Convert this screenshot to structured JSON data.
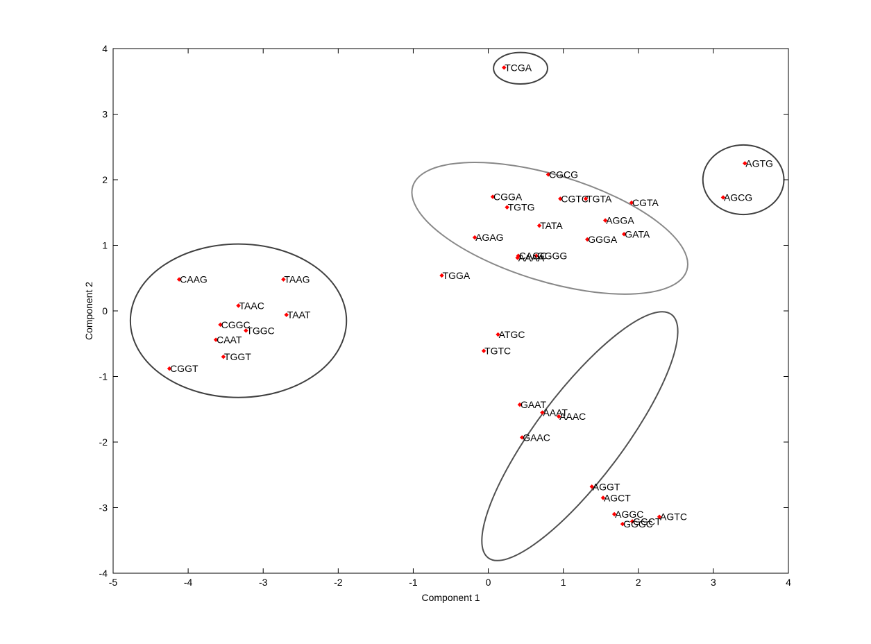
{
  "chart_data": {
    "type": "scatter",
    "title": "",
    "xlabel": "Component 1",
    "ylabel": "Component 2",
    "xlim": [
      -5,
      4
    ],
    "ylim": [
      -4,
      4
    ],
    "xticks": [
      -5,
      -4,
      -3,
      -2,
      -1,
      0,
      1,
      2,
      3,
      4
    ],
    "yticks": [
      -4,
      -3,
      -2,
      -1,
      0,
      1,
      2,
      3,
      4
    ],
    "grid": false,
    "marker_color": "#ff0000",
    "axis_color": "#000000",
    "points": [
      {
        "label": "TCGA",
        "x": 0.21,
        "y": 3.71
      },
      {
        "label": "AGTG",
        "x": 3.42,
        "y": 2.25
      },
      {
        "label": "AGCG",
        "x": 3.13,
        "y": 1.73
      },
      {
        "label": "CGCG",
        "x": 0.8,
        "y": 2.08
      },
      {
        "label": "CGGA",
        "x": 0.06,
        "y": 1.74
      },
      {
        "label": "TGTG",
        "x": 0.25,
        "y": 1.58
      },
      {
        "label": "CGTC",
        "x": 0.96,
        "y": 1.71
      },
      {
        "label": "TGTA",
        "x": 1.3,
        "y": 1.71
      },
      {
        "label": "CGTA",
        "x": 1.91,
        "y": 1.65
      },
      {
        "label": "AGGA",
        "x": 1.56,
        "y": 1.38
      },
      {
        "label": "TATA",
        "x": 0.68,
        "y": 1.3
      },
      {
        "label": "GATA",
        "x": 1.81,
        "y": 1.17
      },
      {
        "label": "AGAG",
        "x": -0.18,
        "y": 1.12
      },
      {
        "label": "GGGA",
        "x": 1.32,
        "y": 1.09
      },
      {
        "label": "CAGC",
        "x": 0.4,
        "y": 0.84
      },
      {
        "label": "GGGG",
        "x": 0.64,
        "y": 0.84
      },
      {
        "label": "AAAA",
        "x": 0.39,
        "y": 0.81
      },
      {
        "label": "TGGA",
        "x": -0.62,
        "y": 0.54
      },
      {
        "label": "CAAG",
        "x": -4.12,
        "y": 0.48
      },
      {
        "label": "TAAG",
        "x": -2.73,
        "y": 0.48
      },
      {
        "label": "TAAC",
        "x": -3.33,
        "y": 0.08
      },
      {
        "label": "TAAT",
        "x": -2.69,
        "y": -0.06
      },
      {
        "label": "CGGC",
        "x": -3.57,
        "y": -0.21
      },
      {
        "label": "TGGC",
        "x": -3.23,
        "y": -0.3
      },
      {
        "label": "CAAT",
        "x": -3.63,
        "y": -0.44
      },
      {
        "label": "TGGT",
        "x": -3.53,
        "y": -0.7
      },
      {
        "label": "CGGT",
        "x": -4.25,
        "y": -0.88
      },
      {
        "label": "ATGC",
        "x": 0.13,
        "y": -0.36
      },
      {
        "label": "TGTC",
        "x": -0.06,
        "y": -0.61
      },
      {
        "label": "GAAT",
        "x": 0.42,
        "y": -1.43
      },
      {
        "label": "AAAT",
        "x": 0.72,
        "y": -1.55
      },
      {
        "label": "AAAC",
        "x": 0.94,
        "y": -1.61
      },
      {
        "label": "GAAC",
        "x": 0.45,
        "y": -1.93
      },
      {
        "label": "AGGT",
        "x": 1.38,
        "y": -2.68
      },
      {
        "label": "AGCT",
        "x": 1.53,
        "y": -2.85
      },
      {
        "label": "AGGC",
        "x": 1.68,
        "y": -3.1
      },
      {
        "label": "GGCT",
        "x": 1.92,
        "y": -3.21
      },
      {
        "label": "GGGC",
        "x": 1.79,
        "y": -3.25
      },
      {
        "label": "AGTC",
        "x": 2.28,
        "y": -3.14
      }
    ],
    "cluster_ellipses": [
      {
        "cx": 0.43,
        "cy": 3.7,
        "rx": 0.36,
        "ry": 0.24,
        "angle": 0,
        "color": "#404040"
      },
      {
        "cx": 3.4,
        "cy": 2.0,
        "rx": 0.54,
        "ry": 0.53,
        "angle": 0,
        "color": "#404040"
      },
      {
        "cx": -3.33,
        "cy": -0.15,
        "rx": 1.44,
        "ry": 1.17,
        "angle": 0,
        "color": "#404040"
      },
      {
        "cx": 0.82,
        "cy": 1.26,
        "rx": 1.91,
        "ry": 0.81,
        "angle": 17,
        "color": "#888888"
      },
      {
        "cx": 1.22,
        "cy": -1.91,
        "rx": 2.03,
        "ry": 0.66,
        "angle": -53,
        "color": "#505050"
      }
    ]
  }
}
